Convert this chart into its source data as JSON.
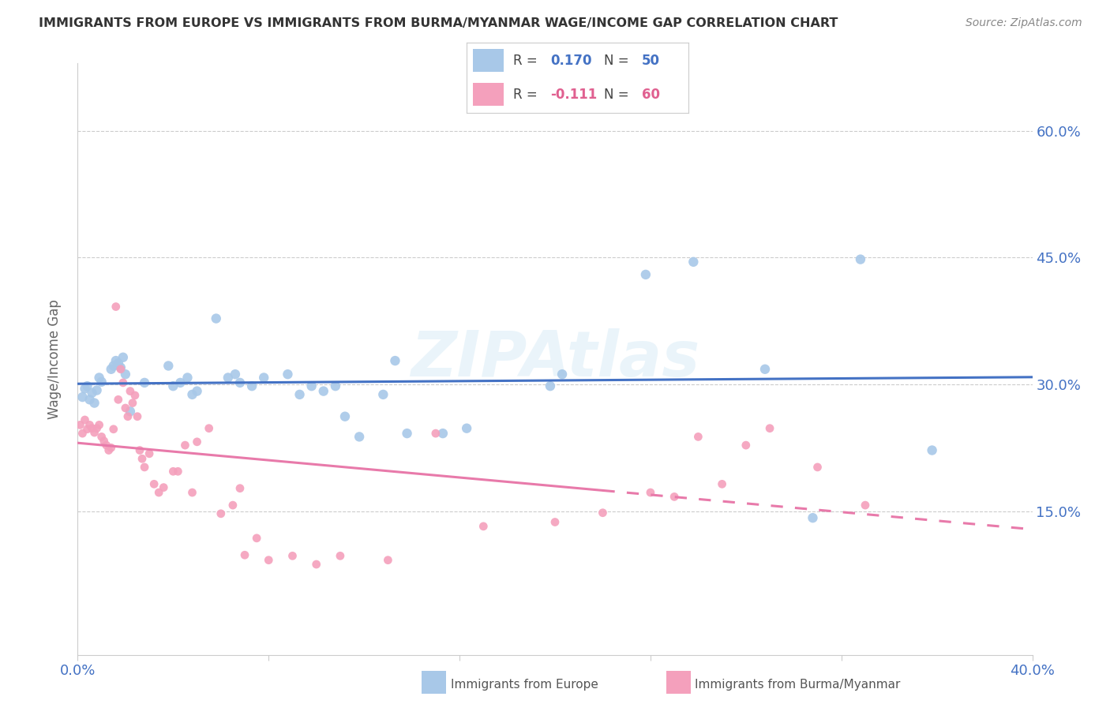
{
  "title": "IMMIGRANTS FROM EUROPE VS IMMIGRANTS FROM BURMA/MYANMAR WAGE/INCOME GAP CORRELATION CHART",
  "source": "Source: ZipAtlas.com",
  "ylabel": "Wage/Income Gap",
  "xlim": [
    0.0,
    0.4
  ],
  "ylim": [
    -0.02,
    0.68
  ],
  "yticks": [
    0.15,
    0.3,
    0.45,
    0.6
  ],
  "ytick_labels": [
    "15.0%",
    "30.0%",
    "45.0%",
    "60.0%"
  ],
  "xticks": [
    0.0,
    0.08,
    0.16,
    0.24,
    0.32,
    0.4
  ],
  "europe_color": "#a8c8e8",
  "burma_color": "#f4a0bc",
  "europe_line_color": "#4472c4",
  "burma_line_color": "#e87aaa",
  "watermark": "ZIPAtlas",
  "europe_points": [
    [
      0.002,
      0.285
    ],
    [
      0.003,
      0.295
    ],
    [
      0.004,
      0.298
    ],
    [
      0.005,
      0.282
    ],
    [
      0.006,
      0.29
    ],
    [
      0.007,
      0.278
    ],
    [
      0.008,
      0.293
    ],
    [
      0.009,
      0.308
    ],
    [
      0.01,
      0.303
    ],
    [
      0.014,
      0.318
    ],
    [
      0.015,
      0.322
    ],
    [
      0.016,
      0.328
    ],
    [
      0.017,
      0.325
    ],
    [
      0.018,
      0.32
    ],
    [
      0.019,
      0.332
    ],
    [
      0.02,
      0.312
    ],
    [
      0.022,
      0.268
    ],
    [
      0.028,
      0.302
    ],
    [
      0.038,
      0.322
    ],
    [
      0.04,
      0.298
    ],
    [
      0.043,
      0.302
    ],
    [
      0.046,
      0.308
    ],
    [
      0.048,
      0.288
    ],
    [
      0.05,
      0.292
    ],
    [
      0.058,
      0.378
    ],
    [
      0.063,
      0.308
    ],
    [
      0.066,
      0.312
    ],
    [
      0.068,
      0.302
    ],
    [
      0.073,
      0.298
    ],
    [
      0.078,
      0.308
    ],
    [
      0.088,
      0.312
    ],
    [
      0.093,
      0.288
    ],
    [
      0.098,
      0.298
    ],
    [
      0.103,
      0.292
    ],
    [
      0.108,
      0.298
    ],
    [
      0.112,
      0.262
    ],
    [
      0.118,
      0.238
    ],
    [
      0.128,
      0.288
    ],
    [
      0.133,
      0.328
    ],
    [
      0.138,
      0.242
    ],
    [
      0.153,
      0.242
    ],
    [
      0.163,
      0.248
    ],
    [
      0.198,
      0.298
    ],
    [
      0.203,
      0.312
    ],
    [
      0.238,
      0.43
    ],
    [
      0.258,
      0.445
    ],
    [
      0.288,
      0.318
    ],
    [
      0.308,
      0.142
    ],
    [
      0.328,
      0.448
    ],
    [
      0.358,
      0.222
    ]
  ],
  "burma_points": [
    [
      0.001,
      0.252
    ],
    [
      0.002,
      0.242
    ],
    [
      0.003,
      0.258
    ],
    [
      0.004,
      0.247
    ],
    [
      0.005,
      0.252
    ],
    [
      0.006,
      0.248
    ],
    [
      0.007,
      0.243
    ],
    [
      0.008,
      0.248
    ],
    [
      0.009,
      0.252
    ],
    [
      0.01,
      0.238
    ],
    [
      0.011,
      0.233
    ],
    [
      0.012,
      0.228
    ],
    [
      0.013,
      0.222
    ],
    [
      0.014,
      0.225
    ],
    [
      0.015,
      0.247
    ],
    [
      0.016,
      0.392
    ],
    [
      0.017,
      0.282
    ],
    [
      0.018,
      0.318
    ],
    [
      0.019,
      0.302
    ],
    [
      0.02,
      0.272
    ],
    [
      0.021,
      0.262
    ],
    [
      0.022,
      0.292
    ],
    [
      0.023,
      0.278
    ],
    [
      0.024,
      0.287
    ],
    [
      0.025,
      0.262
    ],
    [
      0.026,
      0.222
    ],
    [
      0.027,
      0.212
    ],
    [
      0.028,
      0.202
    ],
    [
      0.03,
      0.218
    ],
    [
      0.032,
      0.182
    ],
    [
      0.034,
      0.172
    ],
    [
      0.036,
      0.178
    ],
    [
      0.04,
      0.197
    ],
    [
      0.042,
      0.197
    ],
    [
      0.045,
      0.228
    ],
    [
      0.048,
      0.172
    ],
    [
      0.05,
      0.232
    ],
    [
      0.055,
      0.248
    ],
    [
      0.06,
      0.147
    ],
    [
      0.065,
      0.157
    ],
    [
      0.068,
      0.177
    ],
    [
      0.07,
      0.098
    ],
    [
      0.075,
      0.118
    ],
    [
      0.08,
      0.092
    ],
    [
      0.09,
      0.097
    ],
    [
      0.1,
      0.087
    ],
    [
      0.11,
      0.097
    ],
    [
      0.13,
      0.092
    ],
    [
      0.15,
      0.242
    ],
    [
      0.17,
      0.132
    ],
    [
      0.2,
      0.137
    ],
    [
      0.22,
      0.148
    ],
    [
      0.24,
      0.172
    ],
    [
      0.25,
      0.167
    ],
    [
      0.26,
      0.238
    ],
    [
      0.27,
      0.182
    ],
    [
      0.28,
      0.228
    ],
    [
      0.29,
      0.248
    ],
    [
      0.31,
      0.202
    ],
    [
      0.33,
      0.157
    ]
  ]
}
